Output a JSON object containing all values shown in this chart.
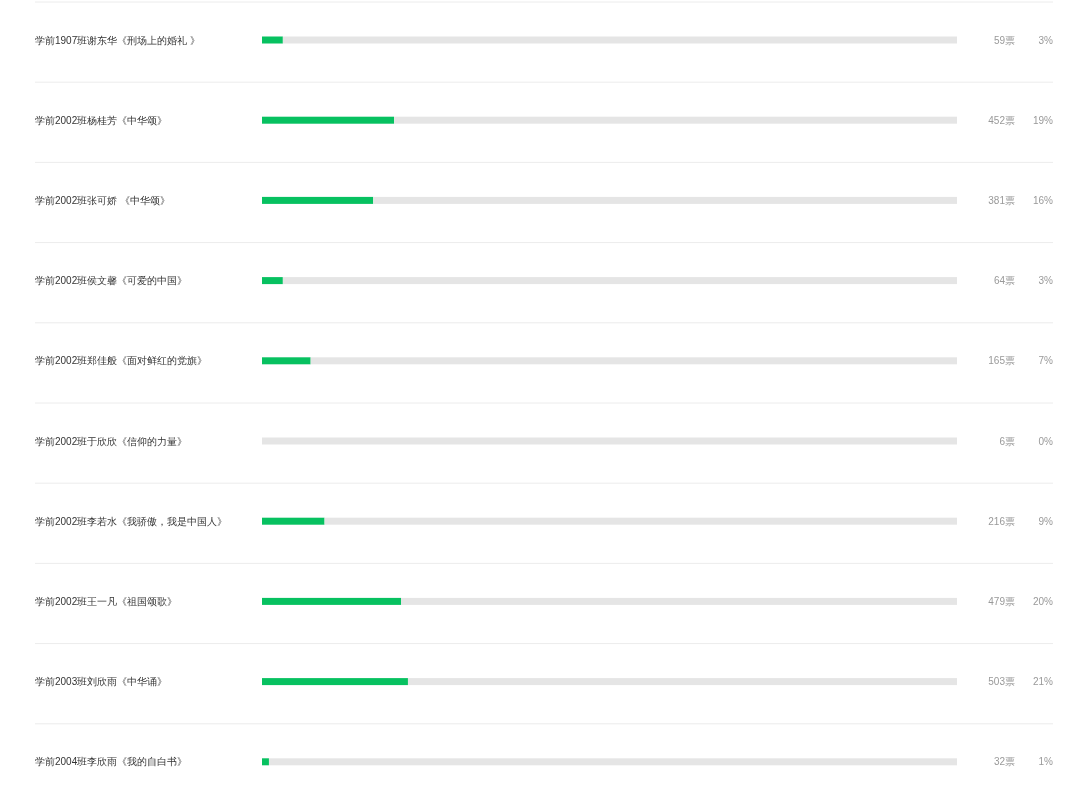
{
  "chart_data": {
    "type": "bar",
    "orientation": "horizontal",
    "stacked": true,
    "tick_labels": "y",
    "xlim": [
      0,
      100
    ],
    "categories": [
      "学前1907班谢东华《刑场上的婚礼 》",
      "学前2002班杨桂芳《中华颂》",
      "学前2002班张可娇 《中华颂》",
      "学前2002班侯文馨《可爱的中国》",
      "学前2002班郑佳般《面对鲜红的党旗》",
      "学前2002班于欣欣《信仰的力量》",
      "学前2002班李若水《我骄傲，我是中国人》",
      "学前2002班王一凡《祖国颂歌》",
      "学前2003班刘欣雨《中华诵》",
      "学前2004班李欣雨《我的自白书》"
    ],
    "series": [
      {
        "color": "#07c160",
        "values": [
          3,
          19,
          16,
          3,
          7,
          0,
          9,
          20,
          21,
          1
        ],
        "value_labels": [
          "3%",
          "19%",
          "16%",
          "3%",
          "7%",
          "0%",
          "9%",
          "20%",
          "21%",
          "1%"
        ]
      },
      {
        "color": "#e5e5e5",
        "values": [
          97,
          81,
          84,
          97,
          93,
          100,
          91,
          80,
          79,
          99
        ]
      }
    ],
    "annotations": [
      "59票",
      "452票",
      "381票",
      "64票",
      "165票",
      "6票",
      "216票",
      "479票",
      "503票",
      "32票"
    ]
  }
}
